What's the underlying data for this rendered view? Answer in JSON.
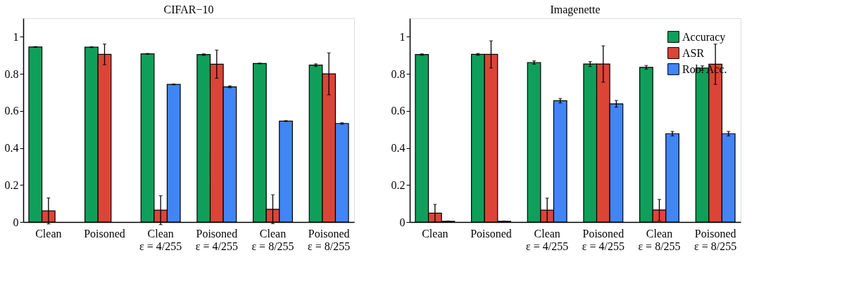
{
  "chart_data": [
    {
      "type": "bar",
      "title": "CIFAR−10",
      "categories": [
        "Clean",
        "Poisoned",
        "Clean\nε = 4/255",
        "Poisoned\nε = 4/255",
        "Clean\nε = 8/255",
        "Poisoned\nε = 8/255"
      ],
      "ylim": [
        0,
        1.1
      ],
      "yticks": [
        0,
        0.2,
        0.4,
        0.6,
        0.8,
        1
      ],
      "series": [
        {
          "color": "#109f5a",
          "values": [
            0.945,
            0.944,
            0.908,
            0.904,
            0.856,
            0.847
          ],
          "errors": [
            0.002,
            0.002,
            0.002,
            0.004,
            0.002,
            0.007
          ]
        },
        {
          "color": "#db4538",
          "values": [
            0.06,
            0.905,
            0.064,
            0.852,
            0.069,
            0.8
          ],
          "errors": [
            0.07,
            0.056,
            0.078,
            0.076,
            0.078,
            0.113
          ]
        },
        {
          "color": "#4285f4",
          "values": [
            null,
            null,
            0.743,
            0.73,
            0.545,
            0.532
          ],
          "errors": [
            null,
            null,
            0.002,
            0.005,
            0.002,
            0.004
          ]
        }
      ]
    },
    {
      "type": "bar",
      "title": "Imagenette",
      "categories": [
        "Clean",
        "Poisoned",
        "Clean\nε = 4/255",
        "Poisoned\nε = 4/255",
        "Clean\nε = 8/255",
        "Poisoned\nε = 8/255"
      ],
      "ylim": [
        0,
        1.1
      ],
      "yticks": [
        0,
        0.2,
        0.4,
        0.6,
        0.8,
        1
      ],
      "legend": "top right",
      "series": [
        {
          "name": "Accuracy",
          "color": "#109f5a",
          "values": [
            0.904,
            0.905,
            0.861,
            0.853,
            0.835,
            0.831
          ],
          "errors": [
            0.004,
            0.005,
            0.009,
            0.013,
            0.01,
            0.012
          ]
        },
        {
          "name": "ASR",
          "color": "#db4538",
          "values": [
            0.048,
            0.905,
            0.064,
            0.853,
            0.065,
            0.852
          ],
          "errors": [
            0.047,
            0.073,
            0.065,
            0.098,
            0.057,
            0.109
          ]
        },
        {
          "name": "Rob. Acc.",
          "color": "#4285f4",
          "values": [
            0.004,
            0.004,
            0.655,
            0.638,
            0.477,
            0.477
          ],
          "errors": [
            0.001,
            0.001,
            0.012,
            0.018,
            0.012,
            0.012
          ]
        }
      ]
    }
  ]
}
